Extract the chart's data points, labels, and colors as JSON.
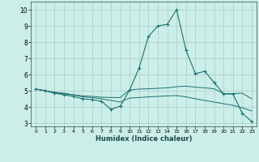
{
  "background_color": "#cceee8",
  "grid_color": "#aaccc8",
  "line_color": "#1a7070",
  "x_label": "Humidex (Indice chaleur)",
  "ylim": [
    2.8,
    10.5
  ],
  "xlim": [
    -0.5,
    23.5
  ],
  "yticks": [
    3,
    4,
    5,
    6,
    7,
    8,
    9,
    10
  ],
  "xticks": [
    0,
    1,
    2,
    3,
    4,
    5,
    6,
    7,
    8,
    9,
    10,
    11,
    12,
    13,
    14,
    15,
    16,
    17,
    18,
    19,
    20,
    21,
    22,
    23
  ],
  "line1_x": [
    0,
    1,
    2,
    3,
    4,
    5,
    6,
    7,
    8,
    9,
    10,
    11,
    12,
    13,
    14,
    15,
    16,
    17,
    18,
    19,
    20,
    21,
    22,
    23
  ],
  "line1_y": [
    5.1,
    5.0,
    4.85,
    4.75,
    4.65,
    4.5,
    4.45,
    4.35,
    3.85,
    4.05,
    5.05,
    6.4,
    8.35,
    9.0,
    9.1,
    10.0,
    7.5,
    6.05,
    6.2,
    5.5,
    4.8,
    4.8,
    3.6,
    3.1
  ],
  "line2_x": [
    0,
    1,
    2,
    3,
    4,
    5,
    6,
    7,
    8,
    9,
    10,
    11,
    12,
    13,
    14,
    15,
    16,
    17,
    18,
    19,
    20,
    21,
    22,
    23
  ],
  "line2_y": [
    5.1,
    5.0,
    4.9,
    4.85,
    4.75,
    4.68,
    4.65,
    4.6,
    4.58,
    4.58,
    5.05,
    5.1,
    5.12,
    5.15,
    5.18,
    5.25,
    5.28,
    5.22,
    5.18,
    5.12,
    4.82,
    4.82,
    4.85,
    4.5
  ],
  "line3_x": [
    0,
    1,
    2,
    3,
    4,
    5,
    6,
    7,
    8,
    9,
    10,
    11,
    12,
    13,
    14,
    15,
    16,
    17,
    18,
    19,
    20,
    21,
    22,
    23
  ],
  "line3_y": [
    5.1,
    5.0,
    4.9,
    4.8,
    4.75,
    4.62,
    4.58,
    4.5,
    4.4,
    4.3,
    4.55,
    4.58,
    4.62,
    4.65,
    4.68,
    4.7,
    4.62,
    4.5,
    4.4,
    4.3,
    4.2,
    4.1,
    3.95,
    3.75
  ]
}
